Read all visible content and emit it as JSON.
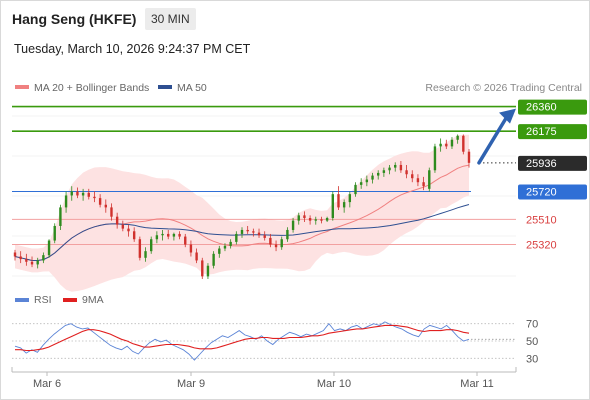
{
  "header": {
    "title": "Hang Seng (HKFE)",
    "timeframe": "30 MIN",
    "datetime": "Tuesday, March 10, 2026 9:24:37 PM CET"
  },
  "colors": {
    "bollinger_fill": "#fde2e2",
    "ma20": "#f08080",
    "ma50": "#2e4f91",
    "resistance": "#3a9a0e",
    "pivot": "#2f6fd6",
    "support": "#d94040",
    "last_price_bg": "#2b2b2b",
    "arrow": "#2f62b0",
    "rsi": "#5b84d6",
    "rsi_ma": "#e02020",
    "candle_up": "#2e8b1e",
    "candle_down": "#d0312d"
  },
  "chart_data": [
    {
      "type": "candlestick",
      "legend": [
        {
          "name": "MA 20 + Bollinger Bands",
          "color": "#f08080"
        },
        {
          "name": "MA 50",
          "color": "#2e4f91"
        }
      ],
      "credit": "Research © 2026 Trading Central",
      "x_ticks": [
        "Mar 6",
        "Mar 9",
        "Mar 10",
        "Mar 11"
      ],
      "ylim": [
        25030,
        26440
      ],
      "levels": [
        {
          "label": "26360",
          "value": 26360,
          "kind": "resistance"
        },
        {
          "label": "26175",
          "value": 26175,
          "kind": "resistance"
        },
        {
          "label": "25936",
          "value": 25936,
          "kind": "last"
        },
        {
          "label": "25720",
          "value": 25720,
          "kind": "pivot"
        },
        {
          "label": "25510",
          "value": 25510,
          "kind": "support"
        },
        {
          "label": "25320",
          "value": 25320,
          "kind": "support"
        }
      ],
      "candles": [
        [
          25260,
          25280,
          25200,
          25230
        ],
        [
          25230,
          25270,
          25180,
          25210
        ],
        [
          25210,
          25250,
          25160,
          25190
        ],
        [
          25190,
          25230,
          25150,
          25170
        ],
        [
          25170,
          25220,
          25140,
          25200
        ],
        [
          25200,
          25260,
          25180,
          25240
        ],
        [
          25240,
          25360,
          25220,
          25350
        ],
        [
          25350,
          25480,
          25330,
          25460
        ],
        [
          25460,
          25620,
          25430,
          25600
        ],
        [
          25600,
          25720,
          25560,
          25690
        ],
        [
          25690,
          25760,
          25650,
          25720
        ],
        [
          25720,
          25750,
          25670,
          25690
        ],
        [
          25690,
          25740,
          25650,
          25710
        ],
        [
          25710,
          25740,
          25660,
          25680
        ],
        [
          25680,
          25720,
          25640,
          25670
        ],
        [
          25670,
          25700,
          25600,
          25620
        ],
        [
          25620,
          25660,
          25560,
          25600
        ],
        [
          25600,
          25630,
          25500,
          25530
        ],
        [
          25530,
          25560,
          25440,
          25470
        ],
        [
          25470,
          25500,
          25420,
          25440
        ],
        [
          25440,
          25470,
          25380,
          25420
        ],
        [
          25420,
          25450,
          25340,
          25360
        ],
        [
          25360,
          25380,
          25200,
          25220
        ],
        [
          25220,
          25300,
          25190,
          25270
        ],
        [
          25270,
          25380,
          25250,
          25360
        ],
        [
          25360,
          25420,
          25330,
          25390
        ],
        [
          25390,
          25430,
          25350,
          25400
        ],
        [
          25400,
          25430,
          25360,
          25380
        ],
        [
          25380,
          25410,
          25350,
          25400
        ],
        [
          25400,
          25420,
          25360,
          25380
        ],
        [
          25380,
          25400,
          25300,
          25320
        ],
        [
          25320,
          25350,
          25230,
          25260
        ],
        [
          25260,
          25290,
          25180,
          25200
        ],
        [
          25200,
          25220,
          25060,
          25080
        ],
        [
          25080,
          25180,
          25060,
          25160
        ],
        [
          25160,
          25270,
          25140,
          25250
        ],
        [
          25250,
          25310,
          25220,
          25290
        ],
        [
          25290,
          25330,
          25270,
          25310
        ],
        [
          25310,
          25360,
          25290,
          25340
        ],
        [
          25340,
          25420,
          25320,
          25400
        ],
        [
          25400,
          25450,
          25370,
          25430
        ],
        [
          25430,
          25460,
          25400,
          25420
        ],
        [
          25420,
          25440,
          25380,
          25410
        ],
        [
          25410,
          25440,
          25370,
          25390
        ],
        [
          25390,
          25420,
          25350,
          25370
        ],
        [
          25370,
          25400,
          25300,
          25320
        ],
        [
          25320,
          25350,
          25270,
          25300
        ],
        [
          25300,
          25380,
          25280,
          25360
        ],
        [
          25360,
          25450,
          25340,
          25430
        ],
        [
          25430,
          25520,
          25410,
          25500
        ],
        [
          25500,
          25560,
          25470,
          25540
        ],
        [
          25540,
          25570,
          25490,
          25520
        ],
        [
          25520,
          25540,
          25470,
          25500
        ],
        [
          25500,
          25530,
          25470,
          25510
        ],
        [
          25510,
          25530,
          25480,
          25500
        ],
        [
          25500,
          25530,
          25490,
          25520
        ],
        [
          25520,
          25720,
          25500,
          25700
        ],
        [
          25700,
          25760,
          25580,
          25600
        ],
        [
          25600,
          25660,
          25560,
          25640
        ],
        [
          25640,
          25720,
          25600,
          25700
        ],
        [
          25700,
          25790,
          25680,
          25770
        ],
        [
          25770,
          25820,
          25740,
          25790
        ],
        [
          25790,
          25840,
          25760,
          25810
        ],
        [
          25810,
          25860,
          25780,
          25840
        ],
        [
          25840,
          25880,
          25810,
          25860
        ],
        [
          25860,
          25900,
          25830,
          25880
        ],
        [
          25880,
          25920,
          25850,
          25900
        ],
        [
          25900,
          25940,
          25870,
          25920
        ],
        [
          25920,
          25950,
          25860,
          25880
        ],
        [
          25880,
          25920,
          25820,
          25850
        ],
        [
          25850,
          25880,
          25790,
          25820
        ],
        [
          25820,
          25850,
          25760,
          25790
        ],
        [
          25790,
          25830,
          25730,
          25760
        ],
        [
          25740,
          25900,
          25720,
          25880
        ],
        [
          25880,
          26080,
          25860,
          26060
        ],
        [
          26060,
          26120,
          26020,
          26080
        ],
        [
          26080,
          26110,
          26040,
          26060
        ],
        [
          26060,
          26130,
          26040,
          26110
        ],
        [
          26110,
          26150,
          26080,
          26140
        ],
        [
          26140,
          26150,
          26000,
          26020
        ],
        [
          26020,
          26040,
          25900,
          25936
        ]
      ]
    },
    {
      "type": "line",
      "legend": [
        {
          "name": "RSI",
          "color": "#5b84d6"
        },
        {
          "name": "9MA",
          "color": "#e02020"
        }
      ],
      "y_ticks": [
        "70",
        "50",
        "30"
      ],
      "ylim": [
        20,
        80
      ],
      "series": [
        {
          "name": "RSI",
          "values": [
            44,
            42,
            36,
            40,
            37,
            45,
            52,
            58,
            63,
            68,
            70,
            66,
            64,
            65,
            60,
            55,
            50,
            45,
            42,
            40,
            44,
            38,
            35,
            42,
            48,
            52,
            49,
            51,
            46,
            43,
            40,
            35,
            28,
            35,
            42,
            48,
            52,
            56,
            54,
            58,
            62,
            57,
            55,
            52,
            56,
            50,
            46,
            52,
            56,
            60,
            58,
            55,
            58,
            56,
            59,
            62,
            70,
            62,
            64,
            62,
            66,
            68,
            64,
            67,
            70,
            68,
            72,
            69,
            66,
            64,
            60,
            57,
            55,
            64,
            68,
            66,
            64,
            68,
            62,
            55,
            50,
            52
          ]
        },
        {
          "name": "9MA",
          "values": [
            40,
            40,
            39,
            39,
            40,
            41,
            43,
            46,
            49,
            52,
            55,
            58,
            61,
            63,
            63,
            62,
            60,
            58,
            55,
            52,
            50,
            47,
            45,
            43,
            43,
            44,
            45,
            46,
            46,
            46,
            45,
            44,
            42,
            41,
            41,
            41,
            42,
            44,
            46,
            48,
            50,
            52,
            53,
            53,
            54,
            54,
            53,
            53,
            53,
            54,
            54,
            54,
            55,
            56,
            56,
            57,
            59,
            60,
            61,
            62,
            63,
            64,
            64,
            65,
            66,
            67,
            68,
            68,
            68,
            67,
            66,
            64,
            62,
            61,
            62,
            62,
            62,
            63,
            63,
            62,
            60,
            59
          ]
        }
      ]
    }
  ]
}
